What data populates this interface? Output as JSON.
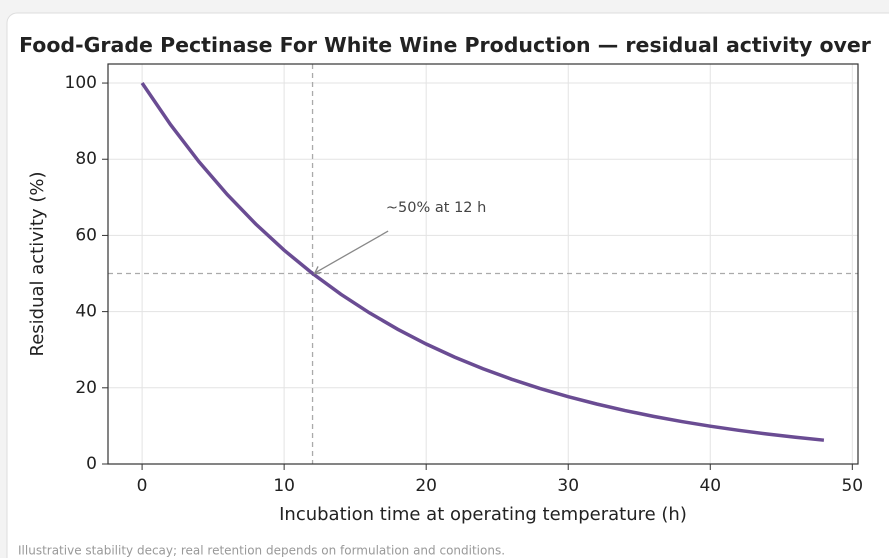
{
  "chart_data": {
    "type": "line",
    "title": "Food-Grade Pectinase For White Wine Production — residual activity over",
    "x_label": "Incubation time at operating temperature (h)",
    "y_label": "Residual activity (%)",
    "x": [
      0,
      2,
      4,
      6,
      8,
      10,
      12,
      14,
      16,
      18,
      20,
      22,
      24,
      26,
      28,
      30,
      32,
      34,
      36,
      38,
      40,
      42,
      44,
      46,
      48
    ],
    "series": [
      {
        "name": "Residual activity",
        "color": "#6a4c93",
        "values": [
          100,
          89.09,
          79.37,
          70.71,
          63.0,
          56.12,
          50,
          44.54,
          39.69,
          35.36,
          31.5,
          28.06,
          25,
          22.27,
          19.84,
          17.68,
          15.75,
          14.03,
          12.5,
          11.14,
          9.92,
          8.84,
          7.87,
          7.01,
          6.25
        ]
      }
    ],
    "xlim": [
      -2.4,
      50.4
    ],
    "xticks": [
      0,
      10,
      20,
      30,
      40,
      50
    ],
    "ylim": [
      0,
      105
    ],
    "yticks": [
      0,
      20,
      40,
      60,
      80,
      100
    ],
    "grid": true,
    "reference": {
      "x": 12,
      "y": 50
    },
    "annotation": {
      "text": "~50% at 12 h",
      "x": 20.7,
      "y": 63.5,
      "target_x": 12,
      "target_y": 50
    },
    "footnote": "Illustrative stability decay; real retention depends on formulation and conditions."
  }
}
